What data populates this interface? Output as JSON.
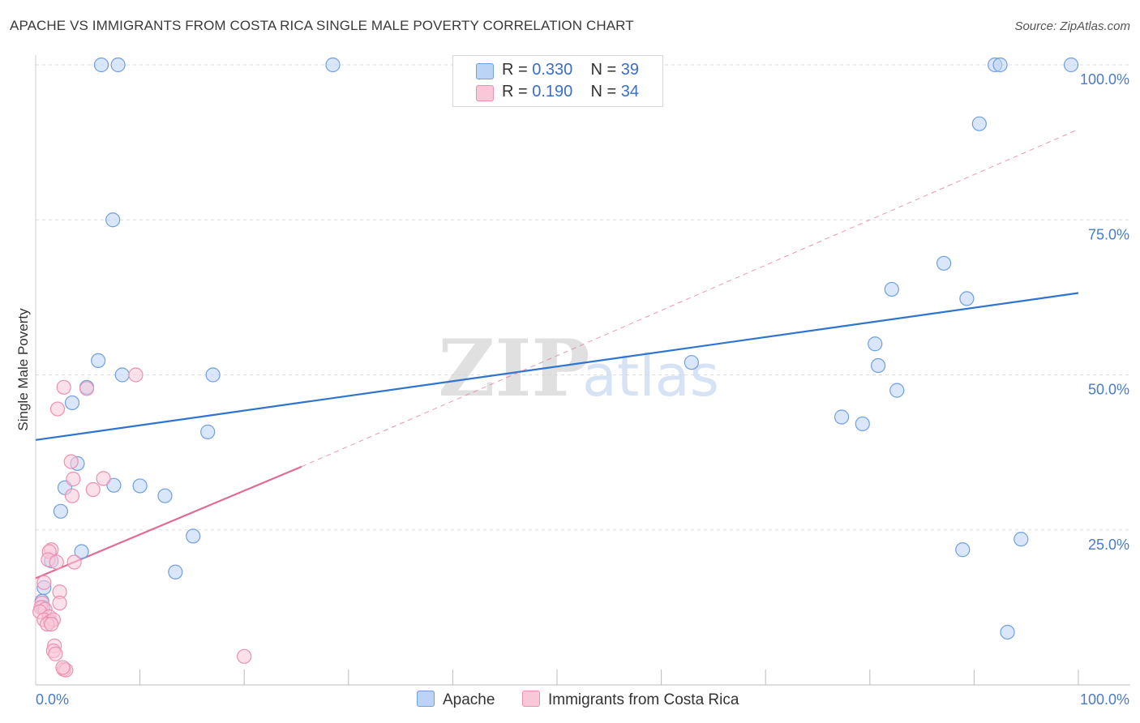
{
  "title": "APACHE VS IMMIGRANTS FROM COSTA RICA SINGLE MALE POVERTY CORRELATION CHART",
  "source": "Source: ZipAtlas.com",
  "watermark": {
    "zip": "ZIP",
    "atlas": "atlas"
  },
  "legend": {
    "r_label": "R =",
    "n_label": "N =",
    "rows": [
      {
        "r": "0.330",
        "n": "39"
      },
      {
        "r": "0.190",
        "n": "34"
      }
    ]
  },
  "colors": {
    "blue_fill": "#bcd3f5",
    "blue_stroke": "#6f9fe0",
    "blue_line": "#2f74d0",
    "pink_fill": "#f9c8d8",
    "pink_stroke": "#ee8fb0",
    "pink_line": "#e06c96",
    "grid": "#dddddd",
    "axis_label": "#4a7bc8"
  },
  "chart_data": {
    "type": "scatter",
    "title": "APACHE VS IMMIGRANTS FROM COSTA RICA SINGLE MALE POVERTY CORRELATION CHART",
    "xlabel": "",
    "ylabel": "Single Male Poverty",
    "xlim": [
      0,
      100
    ],
    "ylim": [
      0,
      100
    ],
    "x_tick_labels": [
      "0.0%",
      "100.0%"
    ],
    "y_ticks": [
      25,
      50,
      75,
      100
    ],
    "y_tick_labels": [
      "25.0%",
      "50.0%",
      "75.0%",
      "100.0%"
    ],
    "grid": true,
    "legend_position": "top-center",
    "series": [
      {
        "name": "Apache",
        "color": "#6f9fe0",
        "points": [
          [
            6.3,
            100
          ],
          [
            7.9,
            100
          ],
          [
            28.5,
            100
          ],
          [
            92.0,
            100
          ],
          [
            92.5,
            100
          ],
          [
            99.3,
            100
          ],
          [
            90.5,
            90.5
          ],
          [
            7.4,
            75
          ],
          [
            87.1,
            68
          ],
          [
            82.1,
            63.8
          ],
          [
            89.3,
            62.3
          ],
          [
            80.5,
            55
          ],
          [
            62.9,
            52
          ],
          [
            80.8,
            51.5
          ],
          [
            6.0,
            52.3
          ],
          [
            8.3,
            50
          ],
          [
            17.0,
            50
          ],
          [
            4.9,
            48
          ],
          [
            3.5,
            45.5
          ],
          [
            82.6,
            47.5
          ],
          [
            77.3,
            43.2
          ],
          [
            16.5,
            40.8
          ],
          [
            79.3,
            42.1
          ],
          [
            4.0,
            35.7
          ],
          [
            2.8,
            31.8
          ],
          [
            7.5,
            32.2
          ],
          [
            10.0,
            32.1
          ],
          [
            12.4,
            30.5
          ],
          [
            2.4,
            28
          ],
          [
            15.1,
            24
          ],
          [
            94.5,
            23.5
          ],
          [
            4.4,
            21.5
          ],
          [
            88.9,
            21.8
          ],
          [
            1.5,
            20
          ],
          [
            13.4,
            18.2
          ],
          [
            0.8,
            15.7
          ],
          [
            0.6,
            13.5
          ],
          [
            0.7,
            12.5
          ],
          [
            93.2,
            8.5
          ]
        ],
        "trend": {
          "x": [
            0,
            100
          ],
          "y": [
            39.5,
            63.2
          ]
        }
      },
      {
        "name": "Immigrants from Costa Rica",
        "color": "#ee8fb0",
        "points": [
          [
            9.6,
            50
          ],
          [
            2.7,
            48
          ],
          [
            4.9,
            47.8
          ],
          [
            2.1,
            44.5
          ],
          [
            3.4,
            36
          ],
          [
            6.5,
            33.3
          ],
          [
            3.6,
            33.2
          ],
          [
            5.5,
            31.5
          ],
          [
            3.5,
            30.5
          ],
          [
            1.5,
            21.8
          ],
          [
            1.3,
            21.5
          ],
          [
            1.2,
            20.2
          ],
          [
            2.0,
            19.8
          ],
          [
            3.7,
            19.8
          ],
          [
            0.8,
            16.5
          ],
          [
            2.3,
            15
          ],
          [
            0.6,
            13.2
          ],
          [
            2.3,
            13.2
          ],
          [
            0.5,
            12.5
          ],
          [
            0.9,
            12.2
          ],
          [
            0.4,
            11.8
          ],
          [
            1.3,
            11.0
          ],
          [
            0.8,
            10.5
          ],
          [
            1.4,
            10.2
          ],
          [
            1.7,
            10.5
          ],
          [
            1.1,
            9.8
          ],
          [
            1.5,
            9.8
          ],
          [
            1.8,
            6.3
          ],
          [
            1.7,
            5.5
          ],
          [
            1.9,
            5.0
          ],
          [
            20.0,
            4.6
          ],
          [
            2.7,
            2.5
          ],
          [
            2.9,
            2.4
          ],
          [
            2.6,
            2.8
          ]
        ],
        "trend": {
          "x": [
            0,
            25.5
          ],
          "y": [
            17.2,
            35.2
          ]
        },
        "trend_extended": {
          "x": [
            25.5,
            100
          ],
          "y": [
            35.2,
            89.6
          ]
        }
      }
    ]
  }
}
